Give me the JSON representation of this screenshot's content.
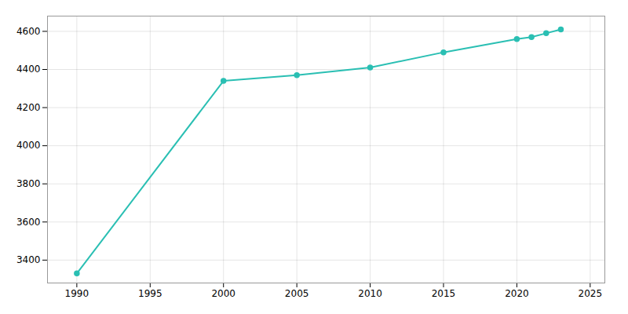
{
  "chart_data": {
    "type": "line",
    "x": [
      1990,
      2000,
      2005,
      2010,
      2015,
      2020,
      2021,
      2022,
      2023
    ],
    "values": [
      3330,
      4340,
      4370,
      4410,
      4490,
      4560,
      4570,
      4590,
      4610
    ],
    "color": "#2abfb3",
    "marker": "circle",
    "xlim": [
      1988,
      2026
    ],
    "ylim": [
      3280,
      4680
    ],
    "xticks": [
      1990,
      1995,
      2000,
      2005,
      2010,
      2015,
      2020,
      2025
    ],
    "yticks": [
      3400,
      3600,
      3800,
      4000,
      4200,
      4400,
      4600
    ],
    "grid": true
  }
}
